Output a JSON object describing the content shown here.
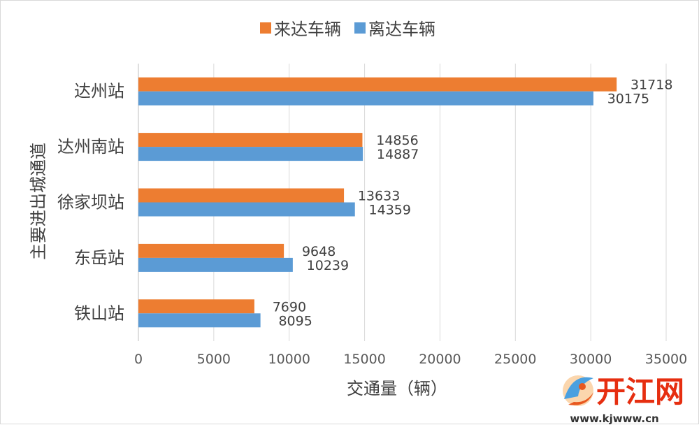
{
  "chart_data": {
    "type": "bar",
    "orientation": "horizontal",
    "categories": [
      "达州站",
      "达州南站",
      "徐家坝站",
      "东岳站",
      "铁山站"
    ],
    "series": [
      {
        "name": "来达车辆",
        "color": "#ed7d31",
        "values": [
          31718,
          14856,
          13633,
          9648,
          7690
        ]
      },
      {
        "name": "离达车辆",
        "color": "#5b9bd5",
        "values": [
          30175,
          14887,
          14359,
          10239,
          8095
        ]
      }
    ],
    "xlabel": "交通量（辆）",
    "ylabel": "主要进出城通道",
    "xlim": [
      0,
      35000
    ],
    "xticks": [
      0,
      5000,
      10000,
      15000,
      20000,
      25000,
      30000,
      35000
    ],
    "grid": "vertical",
    "legend_position": "top",
    "data_labels": true
  },
  "watermark": {
    "logo_text": "开江网",
    "url": "www.kjwww.cn"
  }
}
